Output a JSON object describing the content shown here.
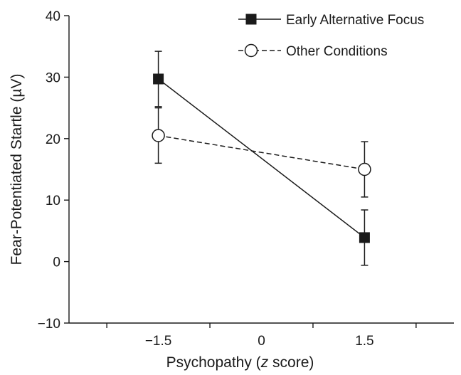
{
  "chart_data": {
    "type": "line",
    "title": "",
    "xlabel_parts": [
      "Psychopathy (",
      "z",
      " score)"
    ],
    "ylabel": "Fear-Potentiated Startle (µV)",
    "x_ticks": [
      -1.5,
      0,
      1.5
    ],
    "x_tick_labels": [
      "−1.5",
      "0",
      "1.5"
    ],
    "xlim": [
      -2.8,
      2.8
    ],
    "y_ticks": [
      -10,
      0,
      10,
      20,
      30,
      40
    ],
    "y_tick_labels": [
      "−10",
      "0",
      "10",
      "20",
      "30",
      "40"
    ],
    "ylim": [
      -10,
      40
    ],
    "grid": false,
    "legend_position": "top-right",
    "series": [
      {
        "name": "Early Alternative Focus",
        "marker": "filled-square",
        "line": "solid",
        "color": "#1a1a1a",
        "x": [
          -1.5,
          1.5
        ],
        "y": [
          29.7,
          3.9
        ],
        "error": [
          4.5,
          4.5
        ]
      },
      {
        "name": "Other Conditions",
        "marker": "open-circle",
        "line": "dashed",
        "color": "#1a1a1a",
        "x": [
          -1.5,
          1.5
        ],
        "y": [
          20.5,
          15.0
        ],
        "error": [
          4.5,
          4.5
        ]
      }
    ]
  }
}
